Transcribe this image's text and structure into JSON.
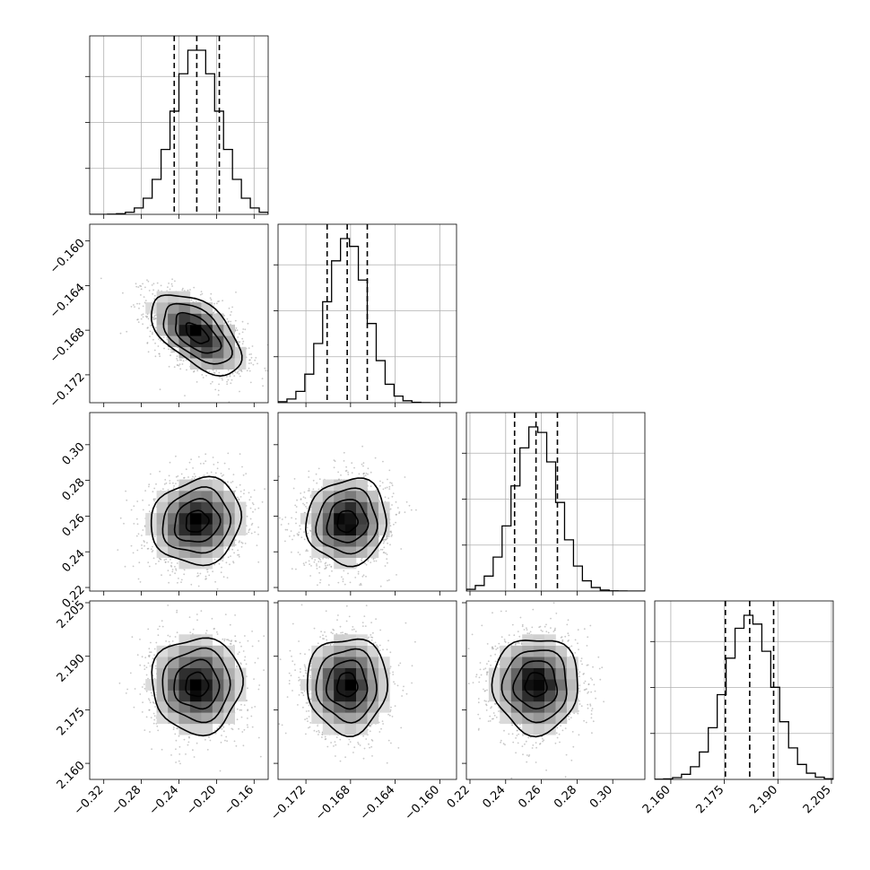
{
  "chart_data": {
    "type": "corner",
    "grid": true,
    "parameters": [
      {
        "range": [
          -0.335,
          -0.145
        ],
        "ticks": [
          -0.32,
          -0.28,
          -0.24,
          -0.2,
          -0.16
        ],
        "tick_labels": [
          "−0.32",
          "−0.28",
          "−0.24",
          "−0.20",
          "−0.16"
        ],
        "mean": -0.221,
        "sigma": 0.024,
        "quantiles": [
          -0.245,
          -0.221,
          -0.197
        ]
      },
      {
        "range": [
          -0.1745,
          -0.1585
        ],
        "ticks": [
          -0.172,
          -0.168,
          -0.164,
          -0.16
        ],
        "tick_labels": [
          "−0.172",
          "−0.168",
          "−0.164",
          "−0.160"
        ],
        "mean": -0.1683,
        "sigma": 0.0018,
        "quantiles": [
          -0.1701,
          -0.1683,
          -0.1665
        ]
      },
      {
        "range": [
          0.218,
          0.318
        ],
        "ticks": [
          0.22,
          0.24,
          0.26,
          0.28,
          0.3
        ],
        "tick_labels": [
          "0.22",
          "0.24",
          "0.26",
          "0.28",
          "0.30"
        ],
        "mean": 0.257,
        "sigma": 0.012,
        "quantiles": [
          0.245,
          0.257,
          0.269
        ]
      },
      {
        "range": [
          2.1555,
          2.2055
        ],
        "ticks": [
          2.16,
          2.175,
          2.19,
          2.205
        ],
        "tick_labels": [
          "2.160",
          "2.175",
          "2.190",
          "2.205"
        ],
        "mean": 2.182,
        "sigma": 0.0067,
        "quantiles": [
          2.1753,
          2.1821,
          2.1888
        ]
      }
    ],
    "correlations": [
      [
        1.0,
        -0.55,
        0.1,
        0.0
      ],
      [
        -0.55,
        1.0,
        0.05,
        0.0
      ],
      [
        0.1,
        0.05,
        1.0,
        0.0
      ],
      [
        0.0,
        0.0,
        0.0,
        1.0
      ]
    ],
    "histogram_bins": 20
  }
}
